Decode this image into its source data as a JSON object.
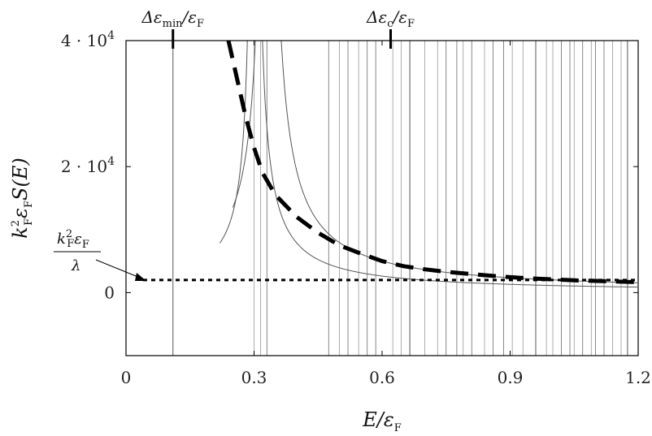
{
  "chart_data": {
    "type": "line",
    "xlabel": "E/ε_F",
    "ylabel": "k_F²ε_F S(E)",
    "xlim": [
      0,
      1.2
    ],
    "ylim": [
      -10000,
      40000
    ],
    "x_ticks": [
      {
        "value": 0,
        "label": "0"
      },
      {
        "value": 0.3,
        "label": "0.3"
      },
      {
        "value": 0.6,
        "label": "0.6"
      },
      {
        "value": 0.9,
        "label": "0.9"
      },
      {
        "value": 1.2,
        "label": "1.2"
      }
    ],
    "y_ticks": [
      {
        "value": 0,
        "base": "0",
        "exp": ""
      },
      {
        "value": 20000,
        "base": "2 · 10",
        "exp": "4"
      },
      {
        "value": 40000,
        "base": "4 · 10",
        "exp": "4"
      }
    ],
    "top_markers": [
      {
        "x": 0.11,
        "label": "Δε_min/ε_F"
      },
      {
        "x": 0.62,
        "label": "Δε_c/ε_F"
      }
    ],
    "annotation": {
      "label": "k_F²ε_F/λ",
      "target": [
        0.04,
        2000
      ]
    },
    "grid": false,
    "legend": "none",
    "series": [
      {
        "style": "dashed-thick",
        "points": [
          [
            0.24,
            40000
          ],
          [
            0.26,
            34000
          ],
          [
            0.28,
            28000
          ],
          [
            0.3,
            23000
          ],
          [
            0.32,
            19000
          ],
          [
            0.35,
            15500
          ],
          [
            0.4,
            12000
          ],
          [
            0.45,
            9500
          ],
          [
            0.5,
            7500
          ],
          [
            0.55,
            6200
          ],
          [
            0.6,
            5000
          ],
          [
            0.65,
            4200
          ],
          [
            0.7,
            3700
          ],
          [
            0.75,
            3300
          ],
          [
            0.8,
            3000
          ],
          [
            0.85,
            2700
          ],
          [
            0.9,
            2450
          ],
          [
            0.95,
            2250
          ],
          [
            1.0,
            2100
          ],
          [
            1.05,
            1950
          ],
          [
            1.1,
            1850
          ],
          [
            1.15,
            1750
          ],
          [
            1.2,
            1650
          ]
        ]
      },
      {
        "style": "dotted-thick",
        "points": [
          [
            0.04,
            2000
          ],
          [
            1.2,
            2000
          ]
        ]
      }
    ],
    "resonances": [
      0.11,
      0.3,
      0.315,
      0.33,
      0.475,
      0.5,
      0.52,
      0.545,
      0.565,
      0.585,
      0.625,
      0.645,
      0.665,
      0.7,
      0.73,
      0.75,
      0.775,
      0.79,
      0.81,
      0.84,
      0.86,
      0.885,
      0.905,
      0.93,
      0.96,
      0.985,
      1.0,
      1.02,
      1.04,
      1.05,
      1.07,
      1.09,
      1.1,
      1.12,
      1.14,
      1.16,
      1.175
    ],
    "branch_curves": [
      {
        "pole": 0.3,
        "a": 1050
      },
      {
        "pole": 0.33,
        "a": 1800
      }
    ],
    "colors": {
      "resonance": "#8a8a8a",
      "branch": "#555555",
      "dashed": "#000000",
      "axis": "#000000"
    }
  }
}
